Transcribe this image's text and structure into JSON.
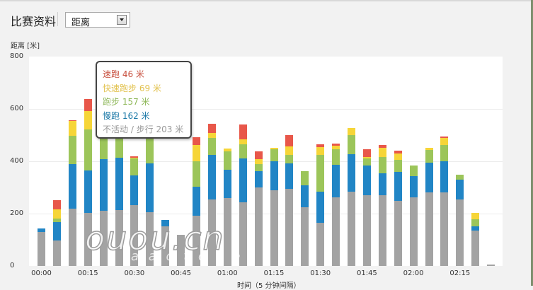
{
  "header": {
    "title": "比赛资料",
    "select_value": "距离"
  },
  "colors": {
    "sprint": "#e8574a",
    "fast_run": "#f6d538",
    "run": "#9cc55a",
    "jog": "#2185c5",
    "inactive": "#a3a3a3"
  },
  "chart_data": {
    "type": "bar",
    "stacked": true,
    "title": "",
    "ylabel": "距离 [米]",
    "xlabel": "时间（5 分钟间隔）",
    "ylim": [
      0,
      800
    ],
    "yticks": [
      "0",
      "200",
      "400",
      "600",
      "800"
    ],
    "grid": true,
    "xtick_labels": [
      "00:00",
      "00:15",
      "00:30",
      "00:45",
      "01:00",
      "01:15",
      "01:30",
      "01:45",
      "02:00",
      "02:15"
    ],
    "categories": [
      "00:00",
      "00:05",
      "00:10",
      "00:15",
      "00:20",
      "00:25",
      "00:30",
      "00:35",
      "00:40",
      "00:45",
      "00:50",
      "00:55",
      "01:00",
      "01:05",
      "01:10",
      "01:15",
      "01:20",
      "01:25",
      "01:30",
      "01:35",
      "01:40",
      "01:45",
      "01:50",
      "01:55",
      "02:00",
      "02:05",
      "02:10",
      "02:15",
      "02:20",
      "02:25"
    ],
    "series": [
      {
        "name": "不活动 / 步行",
        "color": "#a3a3a3",
        "values": [
          130,
          97,
          219,
          203,
          211,
          214,
          232,
          205,
          151,
          120,
          192,
          254,
          259,
          243,
          300,
          289,
          295,
          224,
          165,
          262,
          284,
          270,
          270,
          249,
          262,
          281,
          281,
          254,
          135,
          6
        ]
      },
      {
        "name": "慢跑",
        "color": "#2185c5",
        "values": [
          14,
          70,
          170,
          162,
          197,
          200,
          114,
          186,
          24,
          0,
          111,
          170,
          108,
          168,
          62,
          111,
          97,
          84,
          119,
          124,
          143,
          114,
          84,
          111,
          81,
          114,
          119,
          76,
          16,
          0
        ]
      },
      {
        "name": "跑步",
        "color": "#9cc55a",
        "values": [
          0,
          14,
          108,
          157,
          95,
          87,
          65,
          97,
          0,
          0,
          97,
          65,
          70,
          54,
          27,
          46,
          32,
          54,
          140,
          59,
          73,
          27,
          62,
          46,
          41,
          49,
          62,
          19,
          27,
          0
        ]
      },
      {
        "name": "快速跑步",
        "color": "#f6d538",
        "values": [
          0,
          35,
          57,
          69,
          0,
          0,
          3,
          0,
          0,
          0,
          62,
          19,
          11,
          19,
          19,
          5,
          32,
          0,
          30,
          14,
          27,
          5,
          35,
          24,
          0,
          8,
          27,
          0,
          24,
          0
        ]
      },
      {
        "name": "速跑",
        "color": "#e8574a",
        "values": [
          0,
          35,
          3,
          46,
          0,
          0,
          4,
          0,
          0,
          0,
          30,
          35,
          0,
          57,
          30,
          0,
          43,
          0,
          11,
          8,
          0,
          30,
          11,
          11,
          0,
          0,
          5,
          0,
          0,
          0
        ]
      }
    ],
    "tooltip": {
      "category": "00:15",
      "rows": [
        {
          "label": "速跑 46 米",
          "color": "#c8503f"
        },
        {
          "label": "快速跑步 69 米",
          "color": "#e2c24e"
        },
        {
          "label": "跑步 157 米",
          "color": "#8fb85a"
        },
        {
          "label": "慢跑 162 米",
          "color": "#1d7aa8"
        },
        {
          "label": "不活动 / 步行 203 米",
          "color": "#999999"
        }
      ]
    }
  },
  "watermark": {
    "main": "ouou.cn",
    "sub": "a a o t o c e"
  }
}
